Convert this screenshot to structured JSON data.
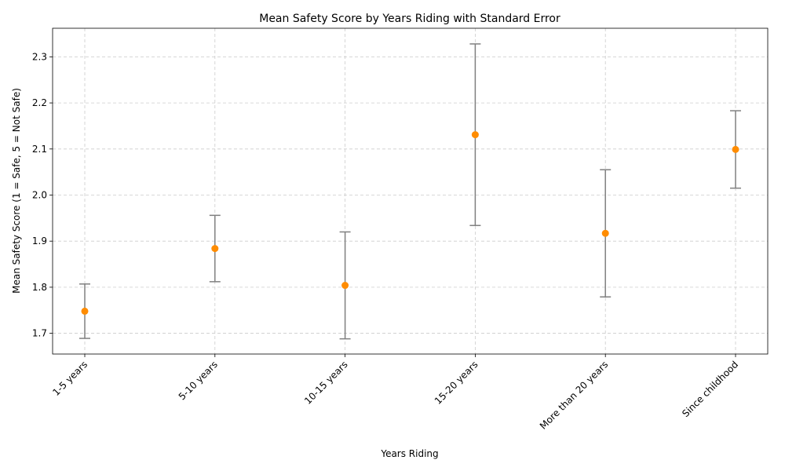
{
  "chart_data": {
    "type": "scatter",
    "title": "Mean Safety Score by Years Riding with Standard Error",
    "xlabel": "Years Riding",
    "ylabel": "Mean Safety Score (1 = Safe, 5 = Not Safe)",
    "categories": [
      "1-5 years",
      "5-10 years",
      "10-15 years",
      "15-20 years",
      "More than 20 years",
      "Since childhood"
    ],
    "values": [
      1.748,
      1.884,
      1.804,
      2.131,
      1.917,
      2.099
    ],
    "errors": [
      0.059,
      0.072,
      0.116,
      0.197,
      0.138,
      0.084
    ],
    "ylim": [
      1.655,
      2.362
    ],
    "yticks": [
      "1.7",
      "1.8",
      "1.9",
      "2.0",
      "2.1",
      "2.2",
      "2.3"
    ],
    "grid": true,
    "point_color": "#ff8c00",
    "error_color": "#808080"
  }
}
